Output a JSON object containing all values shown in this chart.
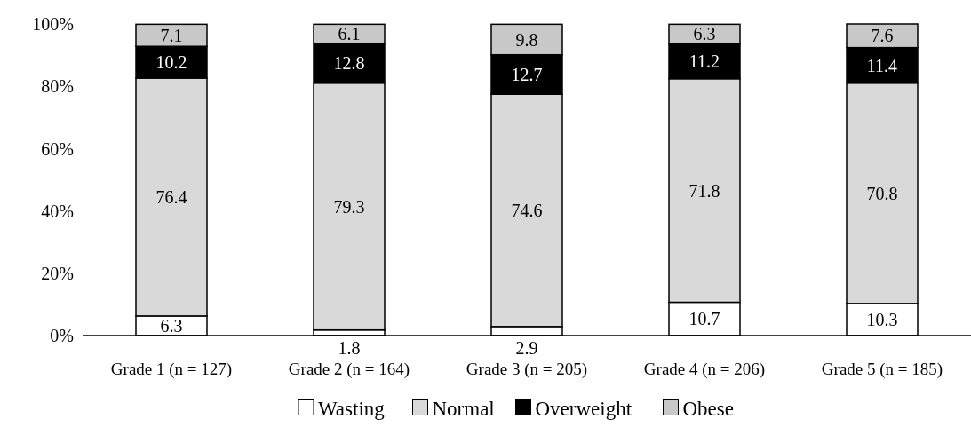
{
  "chart_data": {
    "type": "bar",
    "stacked": true,
    "categories": [
      "Grade 1 (n = 127)",
      "Grade 2 (n = 164)",
      "Grade 3 (n = 205)",
      "Grade 4 (n = 206)",
      "Grade 5 (n = 185)"
    ],
    "series": [
      {
        "name": "Wasting",
        "color": "#ffffff",
        "values": [
          6.3,
          1.8,
          2.9,
          10.7,
          10.3
        ]
      },
      {
        "name": "Normal",
        "color": "#d9d9d9",
        "values": [
          76.4,
          79.3,
          74.6,
          71.8,
          70.8
        ]
      },
      {
        "name": "Overweight",
        "color": "#000000",
        "values": [
          10.2,
          12.8,
          12.7,
          11.2,
          11.4
        ]
      },
      {
        "name": "Obese",
        "color": "#c8c8c8",
        "values": [
          7.1,
          6.1,
          9.8,
          6.3,
          7.6
        ]
      }
    ],
    "ylim": [
      0,
      100.1
    ],
    "yticks": [
      {
        "value": 0,
        "label": "0%"
      },
      {
        "value": 20,
        "label": "20%"
      },
      {
        "value": 40,
        "label": "40%"
      },
      {
        "value": 60,
        "label": "60%"
      },
      {
        "value": 80,
        "label": "80%"
      },
      {
        "value": 100,
        "label": "100%"
      }
    ],
    "data_labels": true,
    "legend": "bottom",
    "grid": false
  }
}
